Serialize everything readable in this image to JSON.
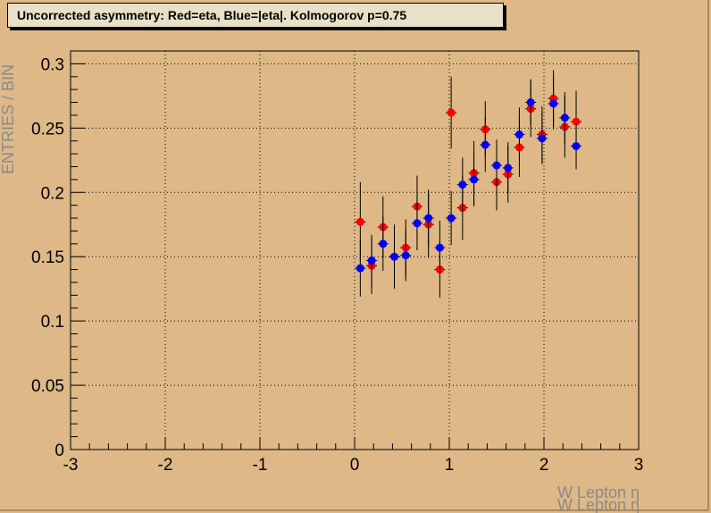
{
  "chart_data": {
    "type": "scatter",
    "title": "Uncorrected asymmetry: Red=eta, Blue=|eta|. Kolmogorov p=0.75",
    "ylabel": "ENTRIES / BIN",
    "xlabel": "W Lepton η",
    "xlabel_ghost": "W Lepton η",
    "xlim": [
      -3,
      3
    ],
    "ylim": [
      0,
      0.31
    ],
    "grid": true,
    "x_ticks": [
      -3,
      -2,
      -1,
      0,
      1,
      2,
      3
    ],
    "y_ticks": [
      0,
      0.05,
      0.1,
      0.15,
      0.2,
      0.25,
      0.3
    ],
    "x_tick_labels": [
      "-3",
      "-2",
      "-1",
      "0",
      "1",
      "2",
      "3"
    ],
    "y_tick_labels": [
      "0",
      "0.05",
      "0.1",
      "0.15",
      "0.2",
      "0.25",
      "0.3"
    ],
    "series": [
      {
        "color": "#ff0000",
        "x": [
          0.06,
          0.18,
          0.3,
          0.42,
          0.54,
          0.66,
          0.78,
          0.9,
          1.02,
          1.14,
          1.26,
          1.38,
          1.5,
          1.62,
          1.74,
          1.86,
          1.98,
          2.1,
          2.22,
          2.34
        ],
        "y": [
          0.177,
          0.143,
          0.173,
          0.15,
          0.157,
          0.189,
          0.175,
          0.14,
          0.262,
          0.188,
          0.215,
          0.249,
          0.208,
          0.214,
          0.235,
          0.265,
          0.245,
          0.273,
          0.251,
          0.255
        ],
        "yerr": [
          0.031,
          0.022,
          0.024,
          0.025,
          0.022,
          0.024,
          0.026,
          0.022,
          0.028,
          0.025,
          0.025,
          0.022,
          0.022,
          0.022,
          0.023,
          0.022,
          0.022,
          0.022,
          0.024,
          0.024
        ]
      },
      {
        "color": "#0000ff",
        "x": [
          0.06,
          0.18,
          0.3,
          0.42,
          0.54,
          0.66,
          0.78,
          0.9,
          1.02,
          1.14,
          1.26,
          1.38,
          1.5,
          1.62,
          1.74,
          1.86,
          1.98,
          2.1,
          2.22,
          2.34
        ],
        "y": [
          0.141,
          0.147,
          0.16,
          0.15,
          0.151,
          0.176,
          0.18,
          0.157,
          0.18,
          0.206,
          0.21,
          0.237,
          0.221,
          0.219,
          0.245,
          0.27,
          0.242,
          0.269,
          0.258,
          0.236
        ],
        "yerr": [
          0.022,
          0.02,
          0.021,
          0.022,
          0.02,
          0.021,
          0.022,
          0.021,
          0.021,
          0.021,
          0.021,
          0.021,
          0.02,
          0.02,
          0.021,
          0.018,
          0.02,
          0.02,
          0.02,
          0.018
        ]
      }
    ]
  }
}
